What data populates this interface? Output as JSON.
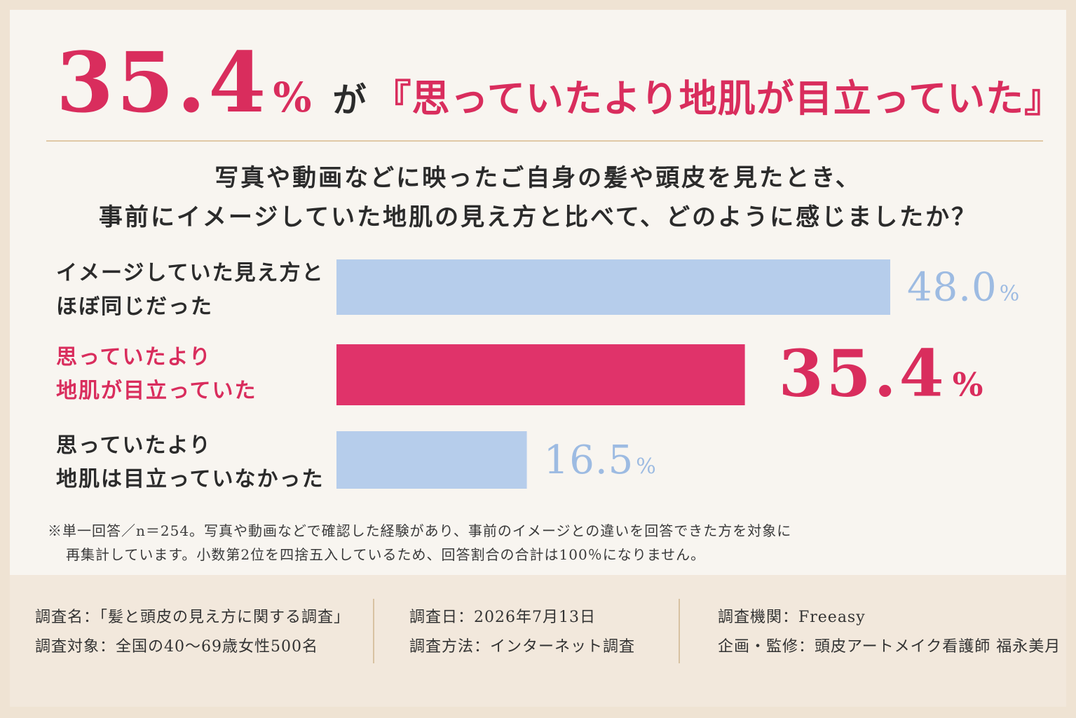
{
  "headline": {
    "value": "35.4",
    "unit": "%",
    "particle": "が",
    "quote": "『思っていたより地肌が目立っていた』"
  },
  "question": {
    "line1": "写真や動画などに映ったご自身の髪や頭皮を見たとき、",
    "line2": "事前にイメージしていた地肌の見え方と比べて、どのように感じましたか？"
  },
  "chart_data": {
    "type": "bar",
    "orientation": "horizontal",
    "categories": [
      [
        "イメージしていた見え方と",
        "ほぼ同じだった"
      ],
      [
        "思っていたより",
        "地肌が目立っていた"
      ],
      [
        "思っていたより",
        "地肌は目立っていなかった"
      ]
    ],
    "values": [
      48.0,
      35.4,
      16.5
    ],
    "value_labels": [
      "48.0",
      "35.4",
      "16.5"
    ],
    "unit": "%",
    "highlight_index": 1,
    "colors": {
      "default": "#b6cdeb",
      "highlight": "#e0336a",
      "default_text": "#9dbbe2",
      "highlight_text": "#d92d5d"
    },
    "xlim": [
      0,
      48.0
    ],
    "grid": false
  },
  "notes": {
    "line1": "※単一回答／n＝254。写真や動画などで確認した経験があり、事前のイメージとの違いを回答できた方を対象に",
    "line2": "再集計しています。小数第2位を四捨五入しているため、回答割合の合計は100％になりません。"
  },
  "footer": {
    "survey_name": "調査名：「髪と頭皮の見え方に関する調査」",
    "survey_target": "調査対象：全国の40～69歳女性500名",
    "survey_date": "調査日：2026年7月13日",
    "survey_method": "調査方法：インターネット調査",
    "survey_org": "調査機関：Freeasy",
    "supervisor": "企画・監修：頭皮アートメイク看護師 福永美月"
  }
}
